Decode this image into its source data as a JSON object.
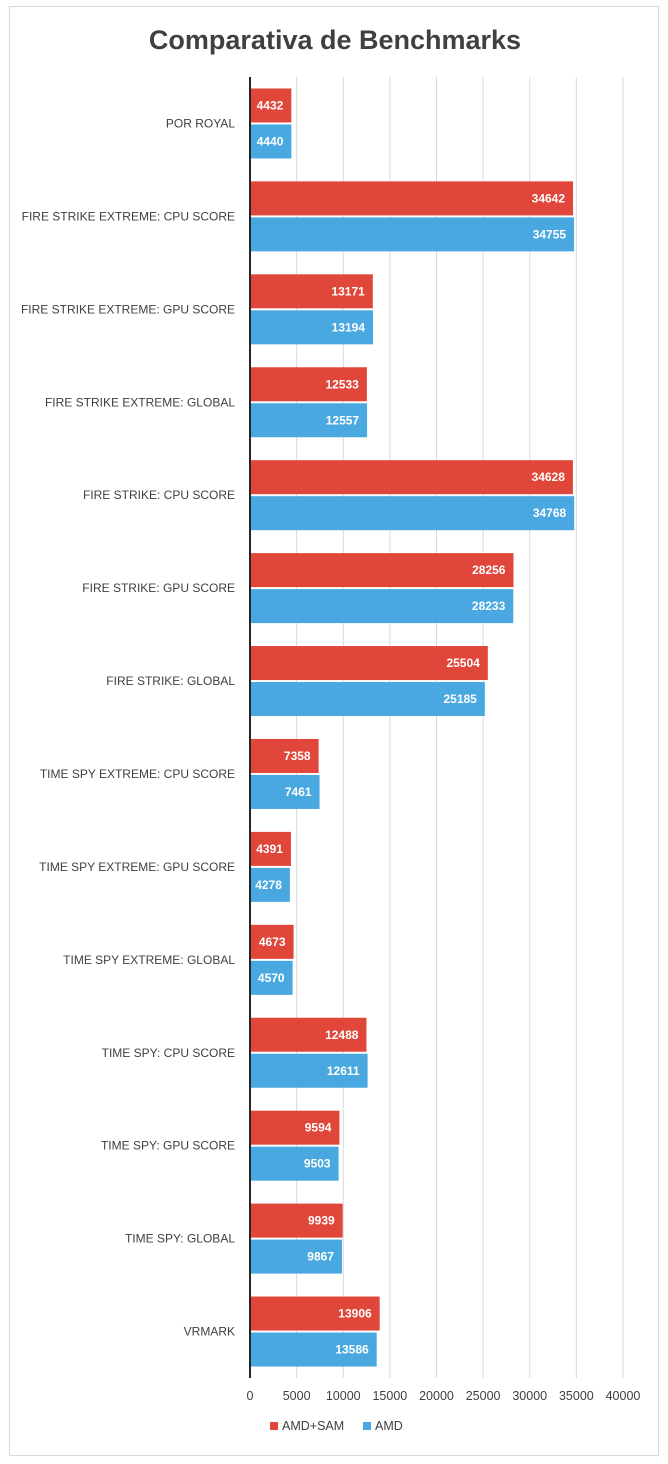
{
  "chart_data": {
    "type": "bar",
    "orientation": "horizontal",
    "title": "Comparativa de Benchmarks",
    "xlabel": "",
    "ylabel": "",
    "xlim": [
      0,
      40000
    ],
    "x_ticks": [
      0,
      5000,
      10000,
      15000,
      20000,
      25000,
      30000,
      35000,
      40000
    ],
    "grid": true,
    "legend": "bottom",
    "categories": [
      "POR ROYAL",
      "FIRE STRIKE EXTREME: CPU SCORE",
      "FIRE STRIKE EXTREME: GPU SCORE",
      "FIRE STRIKE EXTREME: GLOBAL",
      "FIRE STRIKE: CPU SCORE",
      "FIRE STRIKE: GPU SCORE",
      "FIRE STRIKE: GLOBAL",
      "TIME SPY EXTREME: CPU SCORE",
      "TIME SPY EXTREME: GPU SCORE",
      "TIME SPY EXTREME: GLOBAL",
      "TIME SPY: CPU SCORE",
      "TIME SPY: GPU SCORE",
      "TIME SPY: GLOBAL",
      "VRMARK"
    ],
    "series": [
      {
        "name": "AMD+SAM",
        "color": "#e0463a",
        "values": [
          4432,
          34642,
          13171,
          12533,
          34628,
          28256,
          25504,
          7358,
          4391,
          4673,
          12488,
          9594,
          9939,
          13906
        ]
      },
      {
        "name": "AMD",
        "color": "#4aa8e0",
        "values": [
          4440,
          34755,
          13194,
          12557,
          34768,
          28233,
          25185,
          7461,
          4278,
          4570,
          12611,
          9503,
          9867,
          13586
        ]
      }
    ]
  }
}
